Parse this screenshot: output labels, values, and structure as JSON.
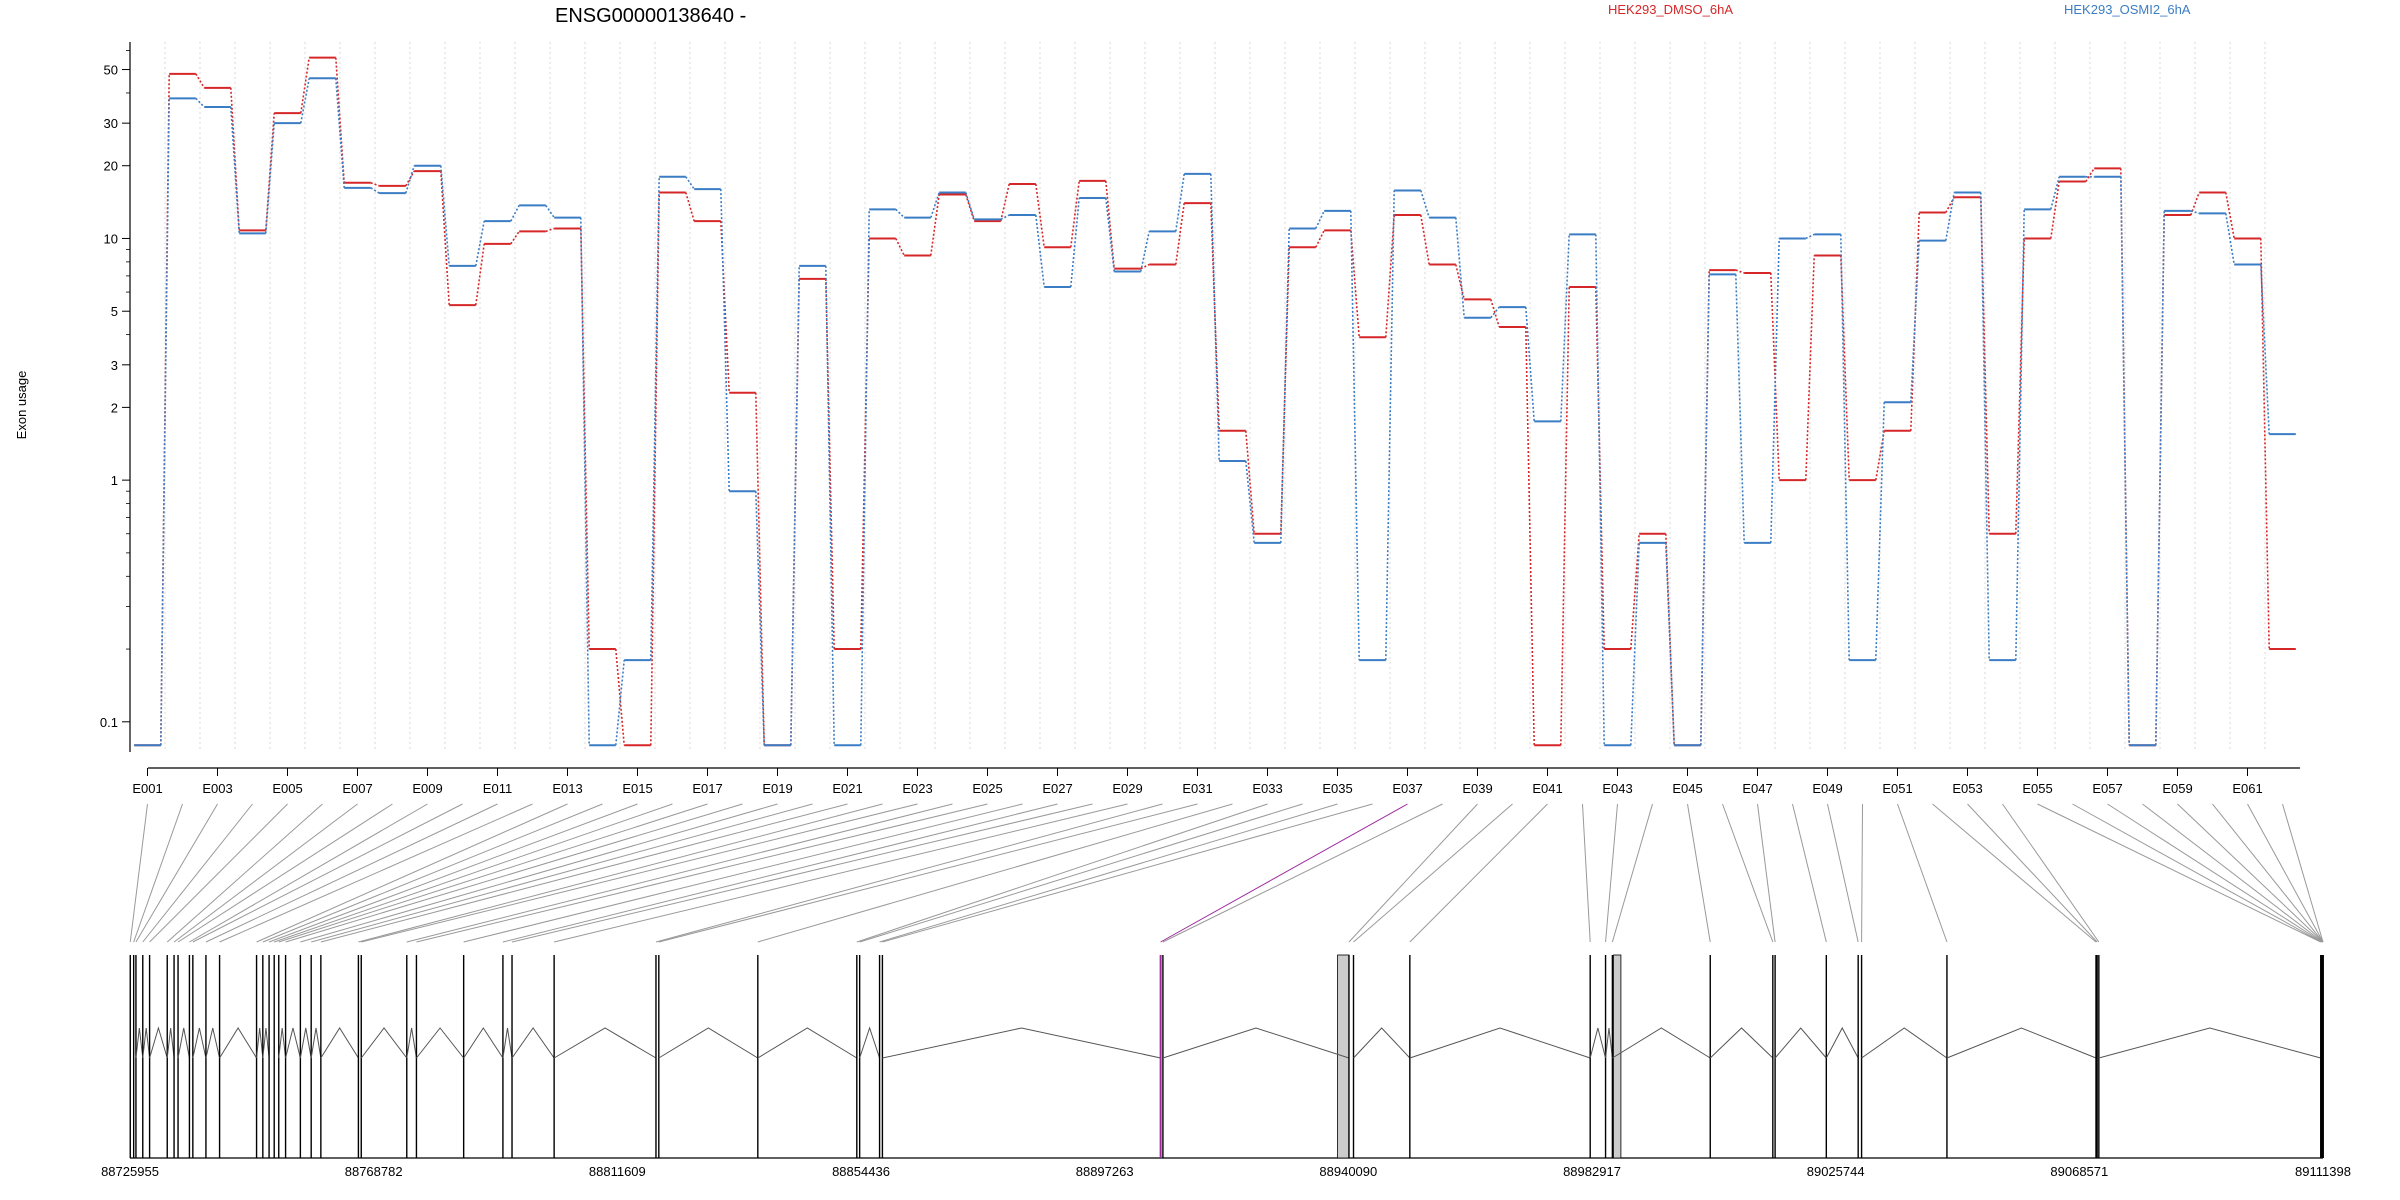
{
  "chart_data": {
    "type": "line",
    "title": "ENSG00000138640 -",
    "ylabel": "Exon usage",
    "yscale": "log",
    "ylim": [
      0.075,
      65
    ],
    "yticks": [
      0.1,
      1,
      2,
      3,
      5,
      10,
      20,
      30,
      50
    ],
    "grid": true,
    "legend_placement": "top-right",
    "exons": [
      "E001",
      "E002",
      "E003",
      "E004",
      "E005",
      "E006",
      "E007",
      "E008",
      "E009",
      "E010",
      "E011",
      "E012",
      "E013",
      "E014",
      "E015",
      "E016",
      "E017",
      "E018",
      "E019",
      "E020",
      "E021",
      "E022",
      "E023",
      "E024",
      "E025",
      "E026",
      "E027",
      "E028",
      "E029",
      "E030",
      "E031",
      "E032",
      "E033",
      "E034",
      "E035",
      "E036",
      "E037",
      "E038",
      "E039",
      "E040",
      "E041",
      "E042",
      "E043",
      "E044",
      "E045",
      "E046",
      "E047",
      "E048",
      "E049",
      "E050",
      "E051",
      "E052",
      "E053",
      "E054",
      "E055",
      "E056",
      "E057",
      "E058",
      "E059",
      "E060",
      "E061",
      "E062"
    ],
    "exon_tick_labels": [
      "E001",
      "E003",
      "E005",
      "E007",
      "E009",
      "E011",
      "E013",
      "E015",
      "E017",
      "E019",
      "E021",
      "E023",
      "E025",
      "E027",
      "E029",
      "E031",
      "E033",
      "E035",
      "E037",
      "E039",
      "E041",
      "E043",
      "E045",
      "E047",
      "E049",
      "E051",
      "E053",
      "E055",
      "E057",
      "E059",
      "E061"
    ],
    "series": [
      {
        "name": "HEK293_DMSO_6hA",
        "color": "#d62728",
        "values": [
          0.08,
          48,
          42,
          10.8,
          33,
          56,
          17,
          16.5,
          19,
          5.3,
          9.5,
          10.7,
          11,
          0.2,
          0.08,
          15.5,
          11.8,
          2.3,
          0.08,
          6.8,
          0.2,
          10,
          8.5,
          15.2,
          11.8,
          16.8,
          9.2,
          17.3,
          7.5,
          7.8,
          14,
          1.6,
          0.6,
          9.2,
          10.8,
          3.9,
          12.5,
          7.8,
          5.6,
          4.3,
          0.08,
          6.3,
          0.2,
          0.6,
          0.08,
          7.4,
          7.2,
          1.0,
          8.5,
          1.0,
          1.6,
          12.8,
          14.8,
          0.6,
          10,
          17.2,
          19.5,
          0.08,
          12.5,
          15.5,
          10,
          0.2
        ]
      },
      {
        "name": "HEK293_OSMI2_6hA",
        "color": "#3b7dc4",
        "values": [
          0.08,
          38,
          35,
          10.5,
          30,
          46,
          16.2,
          15.4,
          20,
          7.7,
          11.8,
          13.7,
          12.2,
          0.08,
          0.18,
          18,
          16,
          0.9,
          0.08,
          7.7,
          0.08,
          13.2,
          12.2,
          15.5,
          12,
          12.5,
          6.3,
          14.7,
          7.3,
          10.7,
          18.5,
          1.2,
          0.55,
          11,
          13,
          0.18,
          15.8,
          12.2,
          4.7,
          5.2,
          1.75,
          10.4,
          0.08,
          0.55,
          0.08,
          7.1,
          0.55,
          10,
          10.4,
          0.18,
          2.1,
          9.8,
          15.5,
          0.18,
          13.2,
          18,
          18,
          0.08,
          13,
          12.7,
          7.8,
          1.55
        ]
      }
    ],
    "coordinate_ticks": [
      "88725955",
      "88768782",
      "88811609",
      "88854436",
      "88897263",
      "88940090",
      "88982917",
      "89025744",
      "89068571",
      "89111398"
    ],
    "genomic_range": [
      88725955,
      89111398
    ],
    "exon_genomic_positions": [
      88726000,
      88726600,
      88727000,
      88728200,
      88729400,
      88732500,
      88733700,
      88734400,
      88736400,
      88737000,
      88739300,
      88741700,
      88748200,
      88749300,
      88750400,
      88751300,
      88752100,
      88753300,
      88755900,
      88757800,
      88759500,
      88766100,
      88766600,
      88774600,
      88776300,
      88784600,
      88791500,
      88793100,
      88800500,
      88818400,
      88818900,
      88836300,
      88853700,
      88854200,
      88857700,
      88858200,
      88907100,
      88907500,
      88940200,
      88941000,
      88950900,
      88982600,
      88985300,
      88986500,
      89003700,
      89014700,
      89015100,
      89024100,
      89029700,
      89030300,
      89045300,
      89071500,
      89071700,
      89072000,
      89111000,
      89111100,
      89111200,
      89111300,
      89111400,
      89111450,
      89111480,
      89111398
    ],
    "highlight_exon": "E037",
    "highlight_color": "#9e2a9e",
    "wide_exon_blocks": [
      [
        88938200,
        88940200
      ],
      [
        88986700,
        88988000
      ]
    ]
  }
}
